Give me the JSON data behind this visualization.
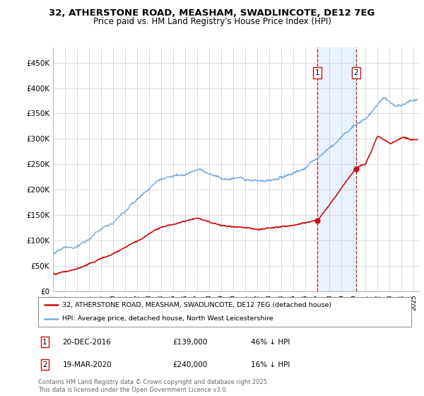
{
  "title_line1": "32, ATHERSTONE ROAD, MEASHAM, SWADLINCOTE, DE12 7EG",
  "title_line2": "Price paid vs. HM Land Registry's House Price Index (HPI)",
  "ylabel_ticks": [
    "£0",
    "£50K",
    "£100K",
    "£150K",
    "£200K",
    "£250K",
    "£300K",
    "£350K",
    "£400K",
    "£450K"
  ],
  "ylabel_vals": [
    0,
    50000,
    100000,
    150000,
    200000,
    250000,
    300000,
    350000,
    400000,
    450000
  ],
  "ylim": [
    0,
    480000
  ],
  "xlim_start": 1995.0,
  "xlim_end": 2025.5,
  "hpi_color": "#7aabdb",
  "price_color": "#cc1111",
  "sale1_date": "20-DEC-2016",
  "sale1_price": 139000,
  "sale1_label": "46% ↓ HPI",
  "sale1_x": 2016.97,
  "sale2_date": "19-MAR-2020",
  "sale2_price": 240000,
  "sale2_label": "16% ↓ HPI",
  "sale2_x": 2020.21,
  "legend_line1": "32, ATHERSTONE ROAD, MEASHAM, SWADLINCOTE, DE12 7EG (detached house)",
  "legend_line2": "HPI: Average price, detached house, North West Leicestershire",
  "footnote": "Contains HM Land Registry data © Crown copyright and database right 2025.\nThis data is licensed under the Open Government Licence v3.0.",
  "background_color": "#ffffff",
  "grid_color": "#cccccc",
  "shade_color": "#ddeeff"
}
